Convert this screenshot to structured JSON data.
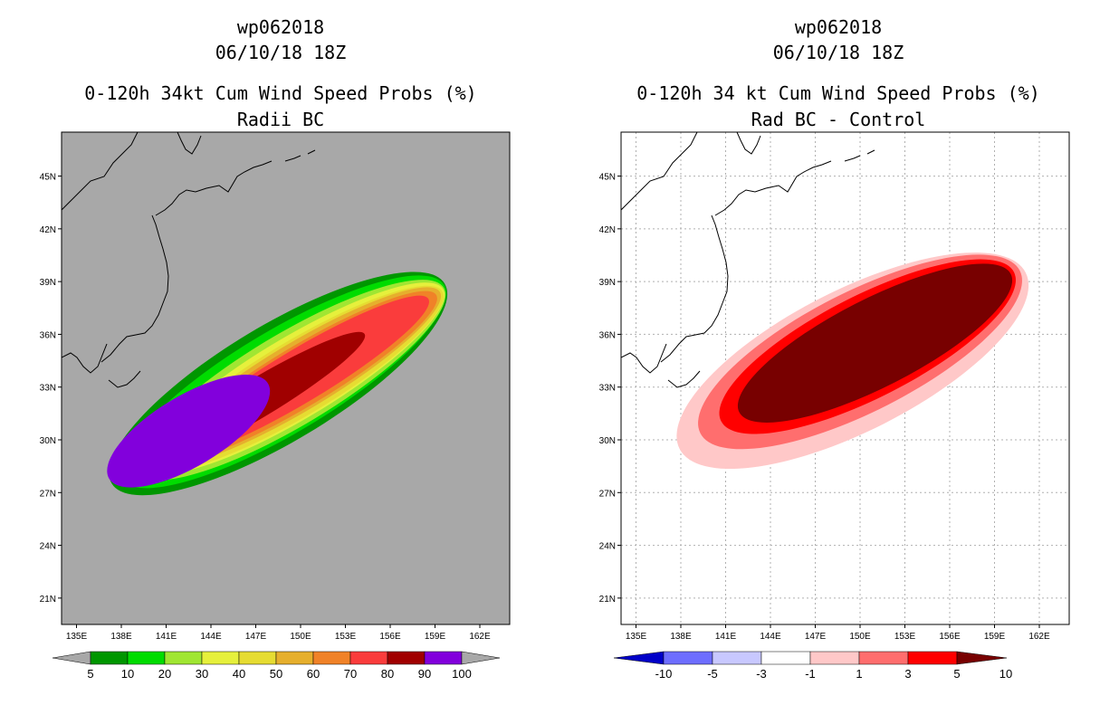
{
  "chart_data": [
    {
      "type": "heatmap",
      "title_lines": [
        "wp062018",
        "06/10/18 18Z",
        "0-120h 34kt Cum Wind Speed Probs (%)",
        "Radii BC"
      ],
      "xlabel": "",
      "ylabel": "",
      "x_ticks": [
        "135E",
        "138E",
        "141E",
        "144E",
        "147E",
        "150E",
        "153E",
        "156E",
        "159E",
        "162E"
      ],
      "y_ticks": [
        "21N",
        "24N",
        "27N",
        "30N",
        "33N",
        "36N",
        "39N",
        "42N",
        "45N"
      ],
      "xlim": [
        134,
        164
      ],
      "ylim": [
        19.5,
        47.5
      ],
      "grid": false,
      "background_color": "#a8a8a8",
      "colorbar": {
        "labels": [
          "5",
          "10",
          "20",
          "30",
          "40",
          "50",
          "60",
          "70",
          "80",
          "90",
          "100"
        ],
        "colors": [
          "#009600",
          "#00dc00",
          "#a0e632",
          "#e6f03c",
          "#e6dc32",
          "#e6af2d",
          "#f08228",
          "#fa3c3c",
          "#a00000",
          "#8200dc"
        ]
      },
      "contour_levels": [
        {
          "value": 5,
          "center": [
            148.5,
            33.2
          ],
          "semi_axes": [
            13.0,
            3.3
          ]
        },
        {
          "value": 10,
          "center": [
            148.8,
            33.3
          ],
          "semi_axes": [
            12.6,
            2.9
          ]
        },
        {
          "value": 20,
          "center": [
            149.3,
            33.4
          ],
          "semi_axes": [
            12.0,
            2.6
          ]
        },
        {
          "value": 30,
          "center": [
            149.6,
            33.5
          ],
          "semi_axes": [
            11.6,
            2.3
          ]
        },
        {
          "value": 40,
          "center": [
            149.8,
            33.5
          ],
          "semi_axes": [
            11.3,
            2.1
          ]
        },
        {
          "value": 50,
          "center": [
            149.9,
            33.6
          ],
          "semi_axes": [
            11.0,
            1.9
          ]
        },
        {
          "value": 60,
          "center": [
            150.0,
            33.6
          ],
          "semi_axes": [
            10.6,
            1.7
          ]
        },
        {
          "value": 70,
          "center": [
            149.9,
            33.6
          ],
          "semi_axes": [
            10.1,
            1.5
          ]
        },
        {
          "value": 80,
          "center": [
            147.0,
            32.3
          ],
          "semi_axes": [
            8.5,
            1.1
          ]
        },
        {
          "value": 90,
          "center": [
            142.5,
            30.5
          ],
          "semi_axes": [
            6.2,
            2.0
          ]
        }
      ]
    },
    {
      "type": "heatmap",
      "title_lines": [
        "wp062018",
        "06/10/18 18Z",
        "0-120h 34 kt Cum Wind Speed Probs (%)",
        "Rad BC - Control"
      ],
      "xlabel": "",
      "ylabel": "",
      "x_ticks": [
        "135E",
        "138E",
        "141E",
        "144E",
        "147E",
        "150E",
        "153E",
        "156E",
        "159E",
        "162E"
      ],
      "y_ticks": [
        "21N",
        "24N",
        "27N",
        "30N",
        "33N",
        "36N",
        "39N",
        "42N",
        "45N"
      ],
      "xlim": [
        134,
        164
      ],
      "ylim": [
        19.5,
        47.5
      ],
      "grid": true,
      "background_color": "#ffffff",
      "colorbar": {
        "labels": [
          "-10",
          "-5",
          "-3",
          "-1",
          "1",
          "3",
          "5",
          "10"
        ],
        "colors": [
          "#0000c8",
          "#6e6eff",
          "#c8c8ff",
          "#ffffff",
          "#ffc8c8",
          "#ff6e6e",
          "#ff0000",
          "#780000"
        ]
      },
      "contour_levels": [
        {
          "value": 1,
          "center": [
            149.5,
            34.5
          ],
          "semi_axes": [
            13.0,
            4.0
          ]
        },
        {
          "value": 3,
          "center": [
            150.0,
            35.0
          ],
          "semi_axes": [
            12.0,
            3.4
          ]
        },
        {
          "value": 5,
          "center": [
            150.5,
            35.3
          ],
          "semi_axes": [
            11.0,
            2.9
          ]
        },
        {
          "value": 10,
          "center": [
            151.0,
            35.5
          ],
          "semi_axes": [
            10.2,
            2.5
          ]
        }
      ]
    }
  ]
}
